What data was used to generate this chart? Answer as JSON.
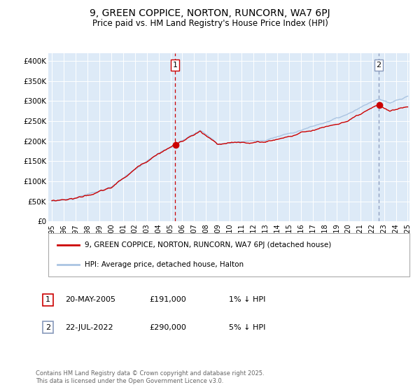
{
  "title": "9, GREEN COPPICE, NORTON, RUNCORN, WA7 6PJ",
  "subtitle": "Price paid vs. HM Land Registry's House Price Index (HPI)",
  "sale1_date": "20-MAY-2005",
  "sale1_price": 191000,
  "sale1_note": "1% ↓ HPI",
  "sale2_date": "22-JUL-2022",
  "sale2_price": 290000,
  "sale2_note": "5% ↓ HPI",
  "sale1_year": 2005.38,
  "sale2_year": 2022.55,
  "hpi_line_color": "#aac4e2",
  "price_line_color": "#cc0000",
  "dot_color": "#cc0000",
  "vline1_color": "#cc0000",
  "vline2_color": "#8899bb",
  "plot_bg_color": "#ddeaf7",
  "ylim": [
    0,
    420000
  ],
  "yticks": [
    0,
    50000,
    100000,
    150000,
    200000,
    250000,
    300000,
    350000,
    400000
  ],
  "ytick_labels": [
    "£0",
    "£50K",
    "£100K",
    "£150K",
    "£200K",
    "£250K",
    "£300K",
    "£350K",
    "£400K"
  ],
  "xstart": 1995,
  "xend": 2025,
  "xticks": [
    1995,
    1996,
    1997,
    1998,
    1999,
    2000,
    2001,
    2002,
    2003,
    2004,
    2005,
    2006,
    2007,
    2008,
    2009,
    2010,
    2011,
    2012,
    2013,
    2014,
    2015,
    2016,
    2017,
    2018,
    2019,
    2020,
    2021,
    2022,
    2023,
    2024,
    2025
  ],
  "legend_label1": "9, GREEN COPPICE, NORTON, RUNCORN, WA7 6PJ (detached house)",
  "legend_label2": "HPI: Average price, detached house, Halton",
  "footnote": "Contains HM Land Registry data © Crown copyright and database right 2025.\nThis data is licensed under the Open Government Licence v3.0.",
  "marker_size": 7,
  "seed_hpi": 10,
  "seed_prop": 20
}
